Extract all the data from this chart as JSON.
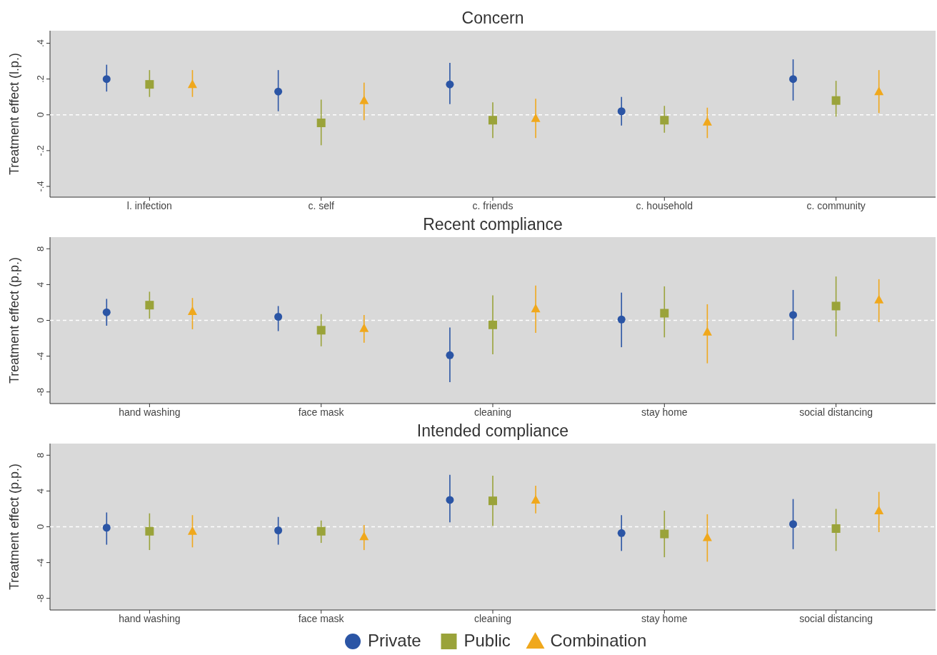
{
  "chart_data": [
    {
      "type": "scatter",
      "title": "Concern",
      "ylabel": "Treatment effect (l.p.)",
      "categories": [
        "l. infection",
        "c. self",
        "c. friends",
        "c. household",
        "c. community"
      ],
      "ylim": [
        -0.46,
        0.47
      ],
      "yticks": [
        {
          "value": -0.4,
          "label": "-.4"
        },
        {
          "value": -0.2,
          "label": "-.2"
        },
        0,
        {
          "value": 0.2,
          "label": ".2"
        },
        {
          "value": 0.4,
          "label": ".4"
        }
      ],
      "grid": false,
      "legend": "bottom",
      "ref_lines": [
        {
          "axis": "y",
          "value": 0,
          "color": "#ffffff",
          "line_style": "dashed"
        }
      ],
      "series": [
        {
          "name": "Private",
          "color": "#2b55a5",
          "marker": "circle",
          "values": [
            0.2,
            0.13,
            0.17,
            0.02,
            0.2
          ],
          "errors": [
            [
              0.13,
              0.28
            ],
            [
              0.02,
              0.25
            ],
            [
              0.06,
              0.29
            ],
            [
              -0.06,
              0.1
            ],
            [
              0.08,
              0.31
            ]
          ]
        },
        {
          "name": "Public",
          "color": "#9aa33a",
          "marker": "square",
          "values": [
            0.17,
            -0.045,
            -0.03,
            -0.03,
            0.08
          ],
          "errors": [
            [
              0.1,
              0.25
            ],
            [
              -0.17,
              0.085
            ],
            [
              -0.13,
              0.07
            ],
            [
              -0.1,
              0.05
            ],
            [
              -0.01,
              0.19
            ]
          ]
        },
        {
          "name": "Combination",
          "color": "#f0a81c",
          "marker": "triangle",
          "values": [
            0.17,
            0.08,
            -0.02,
            -0.04,
            0.13
          ],
          "errors": [
            [
              0.1,
              0.25
            ],
            [
              -0.03,
              0.18
            ],
            [
              -0.13,
              0.09
            ],
            [
              -0.13,
              0.04
            ],
            [
              0.01,
              0.25
            ]
          ]
        }
      ]
    },
    {
      "type": "scatter",
      "title": "Recent compliance",
      "ylabel": "Treatment effect (p.p.)",
      "categories": [
        "hand washing",
        "face mask",
        "cleaning",
        "stay home",
        "social distancing"
      ],
      "ylim": [
        -9.3,
        9.3
      ],
      "yticks": [
        -8,
        -4,
        0,
        4,
        8
      ],
      "grid": false,
      "ref_lines": [
        {
          "axis": "y",
          "value": 0,
          "color": "#ffffff",
          "line_style": "dashed"
        }
      ],
      "series": [
        {
          "color": "#2b55a5",
          "marker": "circle",
          "values": [
            0.9,
            0.4,
            -3.9,
            0.1,
            0.6
          ],
          "errors": [
            [
              -0.6,
              2.4
            ],
            [
              -1.2,
              1.6
            ],
            [
              -6.9,
              -0.8
            ],
            [
              -3.0,
              3.1
            ],
            [
              -2.2,
              3.4
            ]
          ]
        },
        {
          "color": "#9aa33a",
          "marker": "square",
          "values": [
            1.7,
            -1.1,
            -0.5,
            0.8,
            1.6
          ],
          "errors": [
            [
              0.2,
              3.2
            ],
            [
              -2.9,
              0.7
            ],
            [
              -3.8,
              2.8
            ],
            [
              -1.9,
              3.8
            ],
            [
              -1.8,
              4.9
            ]
          ]
        },
        {
          "color": "#f0a81c",
          "marker": "triangle",
          "values": [
            1.0,
            -0.9,
            1.3,
            -1.3,
            2.3
          ],
          "errors": [
            [
              -1.0,
              2.5
            ],
            [
              -2.5,
              0.6
            ],
            [
              -1.4,
              3.9
            ],
            [
              -4.8,
              1.8
            ],
            [
              -0.2,
              4.6
            ]
          ]
        }
      ]
    },
    {
      "type": "scatter",
      "title": "Intended compliance",
      "ylabel": "Treatment effect (p.p.)",
      "categories": [
        "hand washing",
        "face mask",
        "cleaning",
        "stay home",
        "social distancing"
      ],
      "ylim": [
        -9.3,
        9.3
      ],
      "yticks": [
        -8,
        -4,
        0,
        4,
        8
      ],
      "grid": false,
      "ref_lines": [
        {
          "axis": "y",
          "value": 0,
          "color": "#ffffff",
          "line_style": "dashed"
        }
      ],
      "series": [
        {
          "color": "#2b55a5",
          "marker": "circle",
          "values": [
            -0.1,
            -0.4,
            3.0,
            -0.7,
            0.3
          ],
          "errors": [
            [
              -2.0,
              1.6
            ],
            [
              -2.0,
              1.1
            ],
            [
              0.5,
              5.8
            ],
            [
              -2.7,
              1.3
            ],
            [
              -2.5,
              3.1
            ]
          ]
        },
        {
          "color": "#9aa33a",
          "marker": "square",
          "values": [
            -0.5,
            -0.5,
            2.9,
            -0.8,
            -0.2
          ],
          "errors": [
            [
              -2.6,
              1.5
            ],
            [
              -1.8,
              0.7
            ],
            [
              0.1,
              5.7
            ],
            [
              -3.4,
              1.8
            ],
            [
              -2.7,
              2.0
            ]
          ]
        },
        {
          "color": "#f0a81c",
          "marker": "triangle",
          "values": [
            -0.5,
            -1.1,
            3.0,
            -1.2,
            1.8
          ],
          "errors": [
            [
              -2.3,
              1.3
            ],
            [
              -2.6,
              0.2
            ],
            [
              1.5,
              4.6
            ],
            [
              -3.9,
              1.4
            ],
            [
              -0.6,
              3.9
            ]
          ]
        }
      ]
    }
  ]
}
